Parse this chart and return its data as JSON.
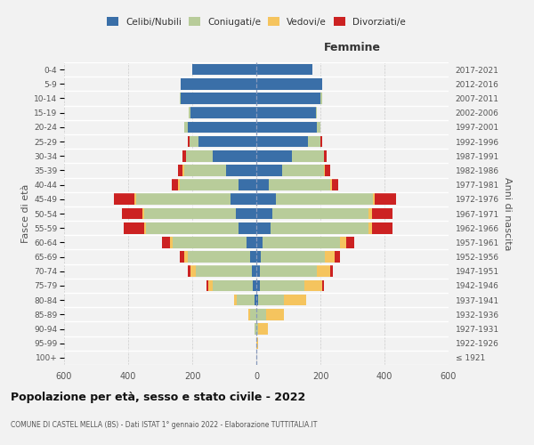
{
  "age_groups": [
    "100+",
    "95-99",
    "90-94",
    "85-89",
    "80-84",
    "75-79",
    "70-74",
    "65-69",
    "60-64",
    "55-59",
    "50-54",
    "45-49",
    "40-44",
    "35-39",
    "30-34",
    "25-29",
    "20-24",
    "15-19",
    "10-14",
    "5-9",
    "0-4"
  ],
  "birth_years": [
    "≤ 1921",
    "1922-1926",
    "1927-1931",
    "1932-1936",
    "1937-1941",
    "1942-1946",
    "1947-1951",
    "1952-1956",
    "1957-1961",
    "1962-1966",
    "1967-1971",
    "1972-1976",
    "1977-1981",
    "1982-1986",
    "1987-1991",
    "1992-1996",
    "1997-2001",
    "2002-2006",
    "2007-2011",
    "2012-2016",
    "2017-2021"
  ],
  "males_celibi": [
    0,
    0,
    0,
    0,
    5,
    10,
    15,
    20,
    30,
    55,
    65,
    80,
    55,
    95,
    135,
    180,
    215,
    205,
    235,
    235,
    200
  ],
  "males_coniugati": [
    0,
    0,
    5,
    20,
    55,
    125,
    175,
    195,
    230,
    290,
    285,
    295,
    185,
    130,
    85,
    28,
    10,
    5,
    5,
    0,
    0
  ],
  "males_vedovi": [
    0,
    0,
    0,
    5,
    10,
    15,
    15,
    10,
    10,
    5,
    5,
    5,
    5,
    5,
    0,
    0,
    0,
    0,
    0,
    0,
    0
  ],
  "males_divorziati": [
    0,
    0,
    0,
    0,
    0,
    5,
    10,
    15,
    25,
    65,
    65,
    65,
    20,
    15,
    10,
    5,
    0,
    0,
    0,
    0,
    0
  ],
  "females_nubili": [
    0,
    0,
    0,
    0,
    5,
    10,
    10,
    15,
    20,
    45,
    50,
    60,
    40,
    80,
    110,
    160,
    190,
    185,
    200,
    205,
    175
  ],
  "females_coniugate": [
    0,
    0,
    5,
    30,
    80,
    140,
    180,
    200,
    240,
    305,
    300,
    305,
    190,
    130,
    100,
    40,
    10,
    5,
    5,
    0,
    0
  ],
  "females_vedove": [
    0,
    5,
    30,
    55,
    70,
    55,
    40,
    30,
    20,
    10,
    10,
    5,
    5,
    5,
    0,
    0,
    0,
    0,
    0,
    0,
    0
  ],
  "females_divorziate": [
    0,
    0,
    0,
    0,
    0,
    5,
    10,
    15,
    25,
    65,
    65,
    65,
    20,
    15,
    10,
    5,
    0,
    0,
    0,
    0,
    0
  ],
  "color_celibi": "#3a6fa8",
  "color_coniugati": "#b8cc9a",
  "color_vedovi": "#f5c45e",
  "color_divorziati": "#cc2222",
  "legend_labels": [
    "Celibi/Nubili",
    "Coniugati/e",
    "Vedovi/e",
    "Divorziati/e"
  ],
  "title": "Popolazione per età, sesso e stato civile - 2022",
  "subtitle": "COMUNE DI CASTEL MELLA (BS) - Dati ISTAT 1° gennaio 2022 - Elaborazione TUTTITALIA.IT",
  "label_femmine": "Femmine",
  "label_fasce": "Fasce di età",
  "label_anni": "Anni di nascita",
  "xlim": 600,
  "bg_color": "#f2f2f2"
}
